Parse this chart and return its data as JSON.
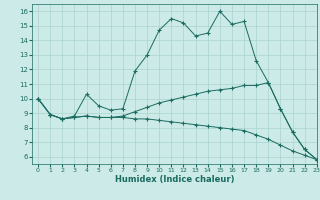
{
  "xlabel": "Humidex (Indice chaleur)",
  "xlim": [
    -0.5,
    23
  ],
  "ylim": [
    5.5,
    16.5
  ],
  "yticks": [
    6,
    7,
    8,
    9,
    10,
    11,
    12,
    13,
    14,
    15,
    16
  ],
  "xticks": [
    0,
    1,
    2,
    3,
    4,
    5,
    6,
    7,
    8,
    9,
    10,
    11,
    12,
    13,
    14,
    15,
    16,
    17,
    18,
    19,
    20,
    21,
    22,
    23
  ],
  "bg_color": "#cceae7",
  "line_color": "#1a6b60",
  "grid_color": "#aad4d0",
  "series": [
    [
      10.0,
      8.9,
      8.6,
      8.8,
      10.3,
      9.5,
      9.2,
      9.3,
      11.9,
      13.0,
      14.7,
      15.5,
      15.2,
      14.3,
      14.5,
      16.0,
      15.1,
      15.3,
      12.6,
      11.1,
      9.3,
      7.7,
      6.5,
      5.8
    ],
    [
      10.0,
      8.9,
      8.6,
      8.7,
      8.8,
      8.7,
      8.7,
      8.8,
      9.1,
      9.4,
      9.7,
      9.9,
      10.1,
      10.3,
      10.5,
      10.6,
      10.7,
      10.9,
      10.9,
      11.1,
      9.3,
      7.7,
      6.5,
      5.8
    ],
    [
      10.0,
      8.9,
      8.6,
      8.7,
      8.8,
      8.7,
      8.7,
      8.7,
      8.6,
      8.6,
      8.5,
      8.4,
      8.3,
      8.2,
      8.1,
      8.0,
      7.9,
      7.8,
      7.5,
      7.2,
      6.8,
      6.4,
      6.1,
      5.8
    ]
  ]
}
